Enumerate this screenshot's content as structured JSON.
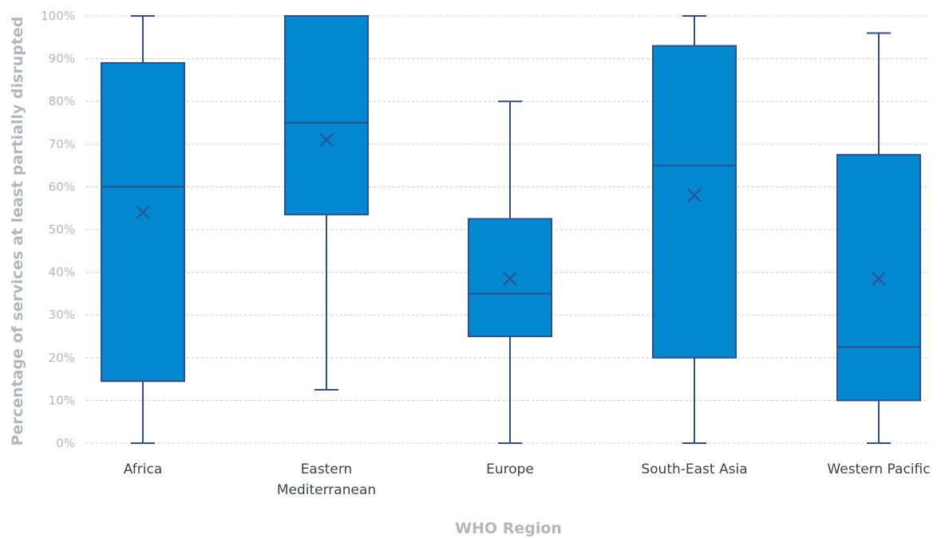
{
  "chart_data": {
    "type": "box",
    "xlabel": "WHO Region",
    "ylabel": "Percentage of services at least partially disrupted",
    "ylim": [
      0,
      100
    ],
    "y_ticks": [
      "0%",
      "10%",
      "20%",
      "30%",
      "40%",
      "50%",
      "60%",
      "70%",
      "80%",
      "90%",
      "100%"
    ],
    "grid": "horizontal dashed",
    "categories": [
      [
        "Africa"
      ],
      [
        "Eastern",
        "Mediterranean"
      ],
      [
        "Europe"
      ],
      [
        "South-East Asia"
      ],
      [
        "Western Pacific"
      ]
    ],
    "boxes": [
      {
        "min": 0,
        "q1": 14.5,
        "median": 60,
        "q3": 89,
        "max": 100,
        "mean": 54
      },
      {
        "min": 12.5,
        "q1": 53.5,
        "median": 75,
        "q3": 100,
        "max": 100,
        "mean": 71
      },
      {
        "min": 0,
        "q1": 25,
        "median": 35,
        "q3": 52.5,
        "max": 80,
        "mean": 38.5
      },
      {
        "min": 0,
        "q1": 20,
        "median": 65,
        "q3": 93,
        "max": 100,
        "mean": 58
      },
      {
        "min": 0,
        "q1": 10,
        "median": 22.5,
        "q3": 67.5,
        "max": 96,
        "mean": 38.5
      }
    ],
    "colors": {
      "box_fill": "#0288d1",
      "box_stroke": "#2f4f8f",
      "grid": "#c8c8c8",
      "muted_text": "#b3b7bd",
      "category_text": "#3d4249"
    }
  }
}
